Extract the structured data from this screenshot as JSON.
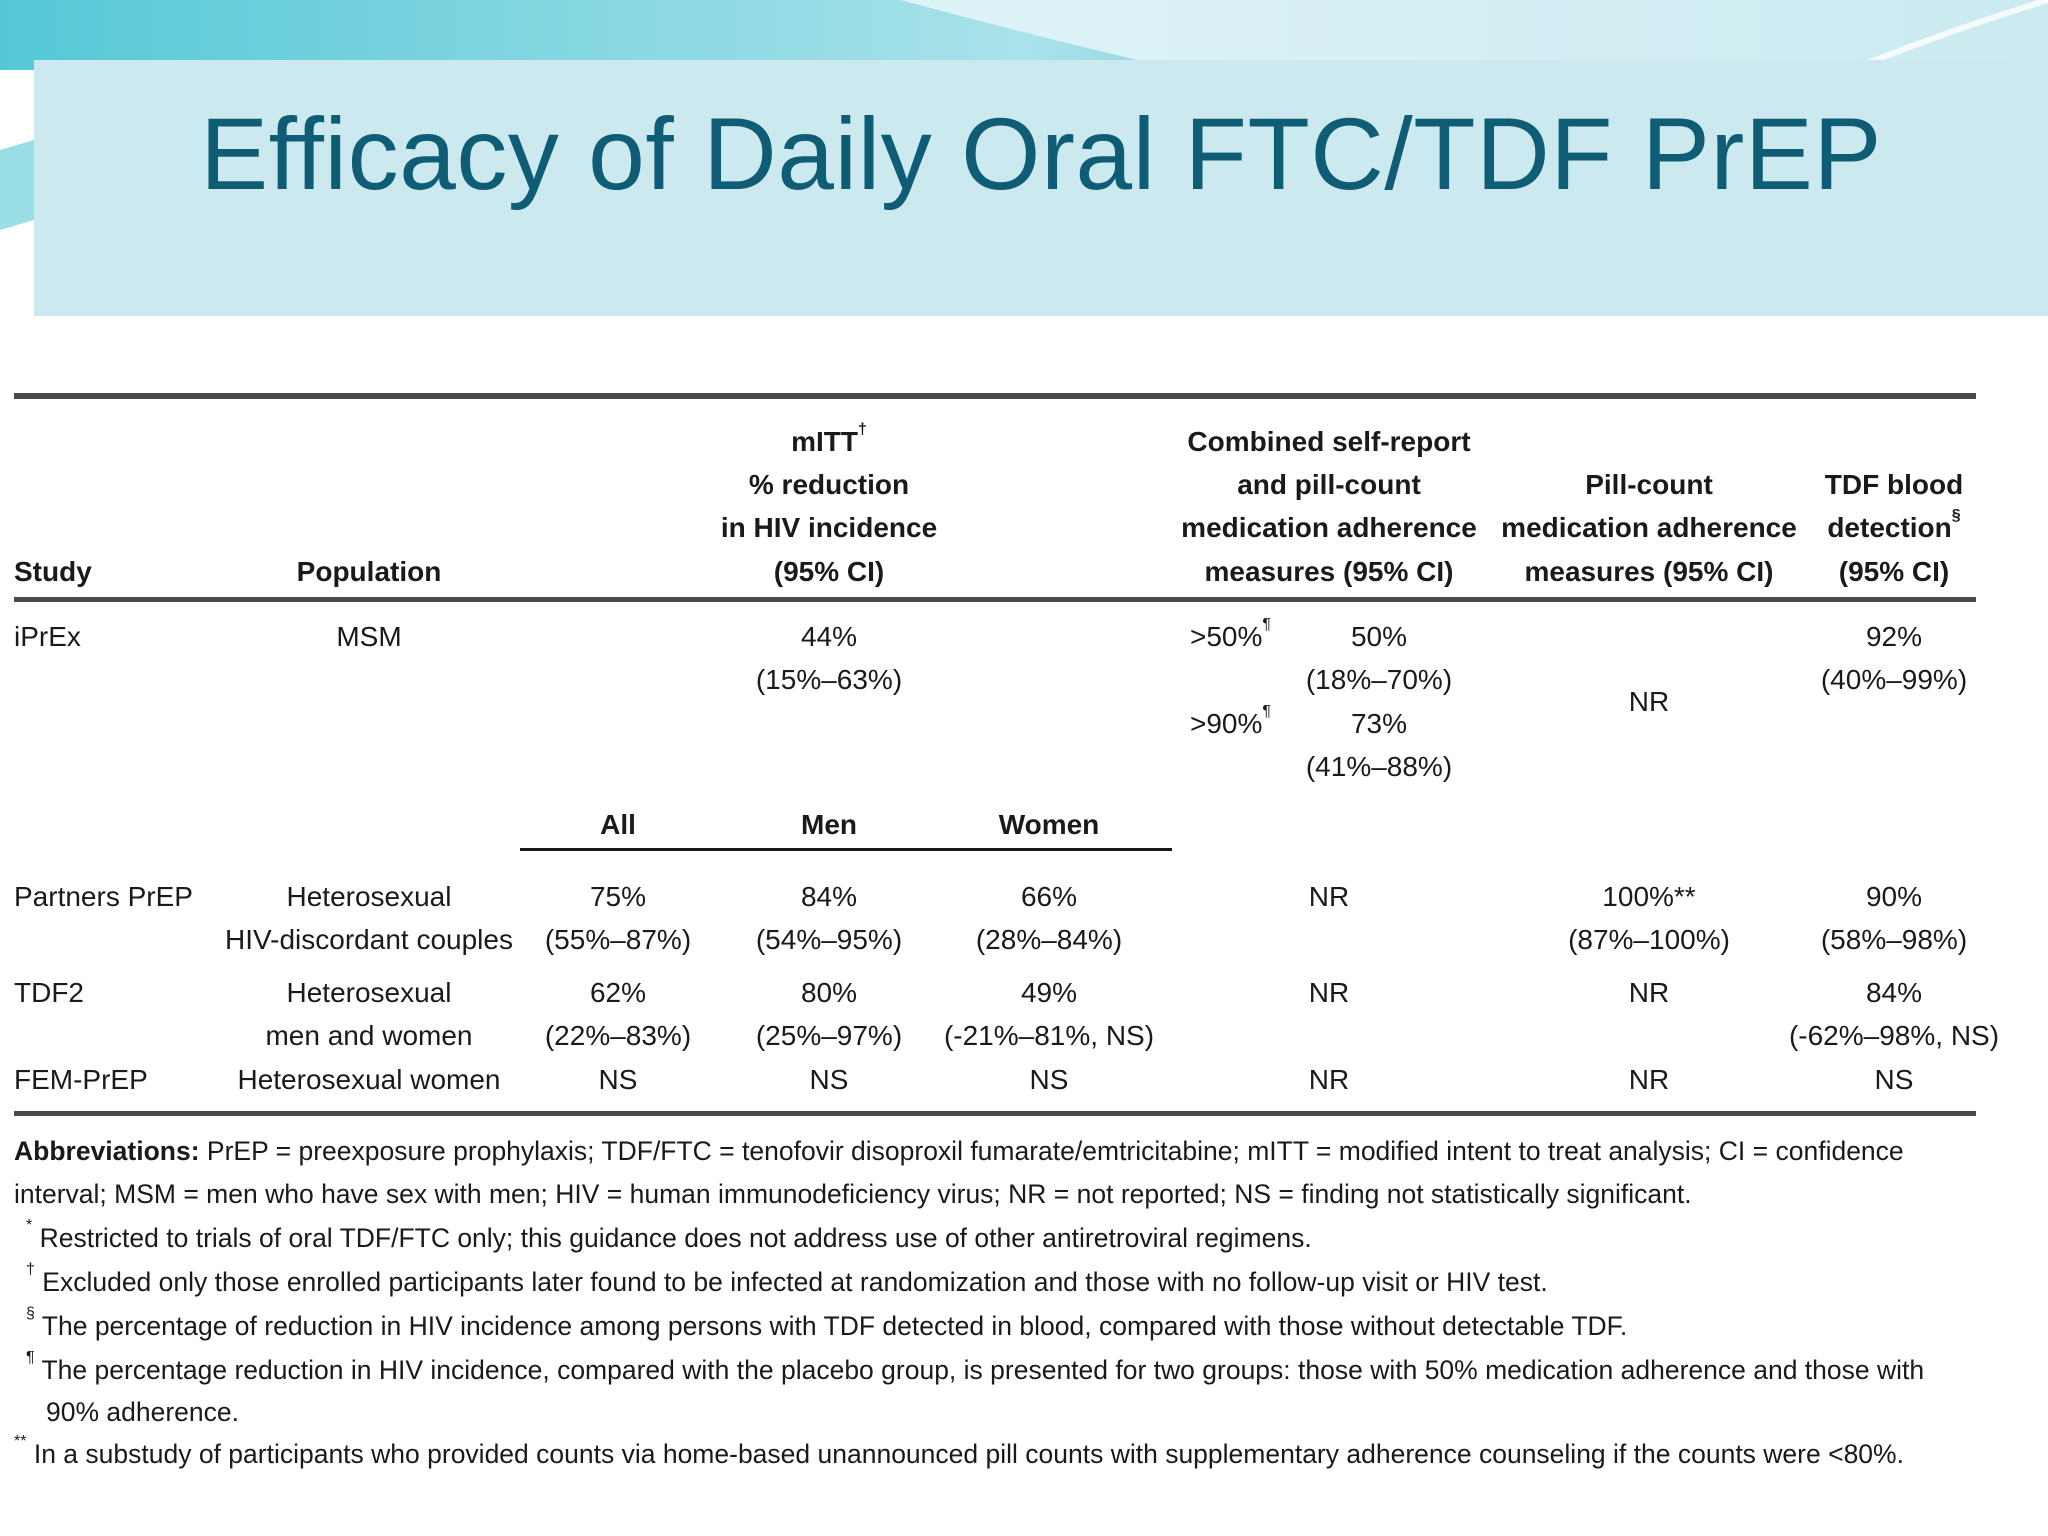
{
  "slide": {
    "title": "Efficacy of Daily Oral FTC/TDF PrEP",
    "colors": {
      "title": "#0e5d74",
      "band": "#cce9f0",
      "accent": "#2bb5c9"
    }
  },
  "table": {
    "headers": {
      "study": "Study",
      "population": "Population",
      "mitt_line1": "mITT",
      "mitt_mark": "†",
      "mitt_line2": "% reduction",
      "mitt_line3": "in HIV incidence",
      "mitt_line4": "(95% CI)",
      "combined_line1": "Combined self-report",
      "combined_line2": "and pill-count",
      "combined_line3": "medication adherence",
      "combined_line4": "measures (95% CI)",
      "pill_line1": "Pill-count",
      "pill_line2": "medication adherence",
      "pill_line3": "measures (95% CI)",
      "tdf_line1": "TDF blood",
      "tdf_line2": "detection",
      "tdf_mark": "§",
      "tdf_line3": "(95% CI)"
    },
    "subheaders": {
      "all": "All",
      "men": "Men",
      "women": "Women"
    },
    "iprex": {
      "study": "iPrEx",
      "population": "MSM",
      "mitt_value": "44%",
      "mitt_ci": "(15%–63%)",
      "adh1_label": ">50%",
      "adh1_mark": "¶",
      "adh1_value": "50%",
      "adh1_ci": "(18%–70%)",
      "adh2_label": ">90%",
      "adh2_mark": "¶",
      "adh2_value": "73%",
      "adh2_ci": "(41%–88%)",
      "pill": "NR",
      "tdf_value": "92%",
      "tdf_ci": "(40%–99%)"
    },
    "partners": {
      "study": "Partners PrEP",
      "population_1": "Heterosexual",
      "population_2": "HIV-discordant couples",
      "all_value": "75%",
      "all_ci": "(55%–87%)",
      "men_value": "84%",
      "men_ci": "(54%–95%)",
      "women_value": "66%",
      "women_ci": "(28%–84%)",
      "combined": "NR",
      "pill_value": "100%**",
      "pill_ci": "(87%–100%)",
      "tdf_value": "90%",
      "tdf_ci": "(58%–98%)"
    },
    "tdf2": {
      "study": "TDF2",
      "population_1": "Heterosexual",
      "population_2": "men and women",
      "all_value": "62%",
      "all_ci": "(22%–83%)",
      "men_value": "80%",
      "men_ci": "(25%–97%)",
      "women_value": "49%",
      "women_ci": "(-21%–81%, NS)",
      "combined": "NR",
      "pill": "NR",
      "tdf_value": "84%",
      "tdf_ci": "(-62%–98%, NS)"
    },
    "femprep": {
      "study": "FEM-PrEP",
      "population": "Heterosexual women",
      "all": "NS",
      "men": "NS",
      "women": "NS",
      "combined": "NR",
      "pill": "NR",
      "tdf": "NS"
    }
  },
  "footnotes": {
    "abbr_label": "Abbreviations:",
    "abbr_text_1": " PrEP = preexposure prophylaxis; TDF/FTC = tenofovir disoproxil fumarate/emtricitabine; mITT = modified intent to treat analysis; CI = confidence",
    "abbr_text_2": "interval; MSM = men who have sex with men; HIV = human immunodeficiency virus; NR = not reported; NS = finding not statistically significant.",
    "star_mark": "*",
    "star_text": "Restricted to trials of oral TDF/FTC only; this guidance does not address use of other antiretroviral regimens.",
    "dagger_mark": "†",
    "dagger_text": "Excluded only those enrolled participants later found to be infected at randomization and those with no follow-up visit or HIV test.",
    "section_mark": "§",
    "section_text": "The percentage of reduction in HIV incidence among persons with TDF detected in blood, compared with those without detectable TDF.",
    "pilcrow_mark": "¶",
    "pilcrow_text_1": "The percentage reduction in HIV incidence, compared with the placebo group, is presented for two groups: those with 50% medication adherence and those with",
    "pilcrow_text_2": "90% adherence.",
    "dstar_mark": "**",
    "dstar_text": "In a substudy of participants who provided counts via home-based unannounced pill counts with supplementary adherence counseling if the counts were <80%."
  }
}
